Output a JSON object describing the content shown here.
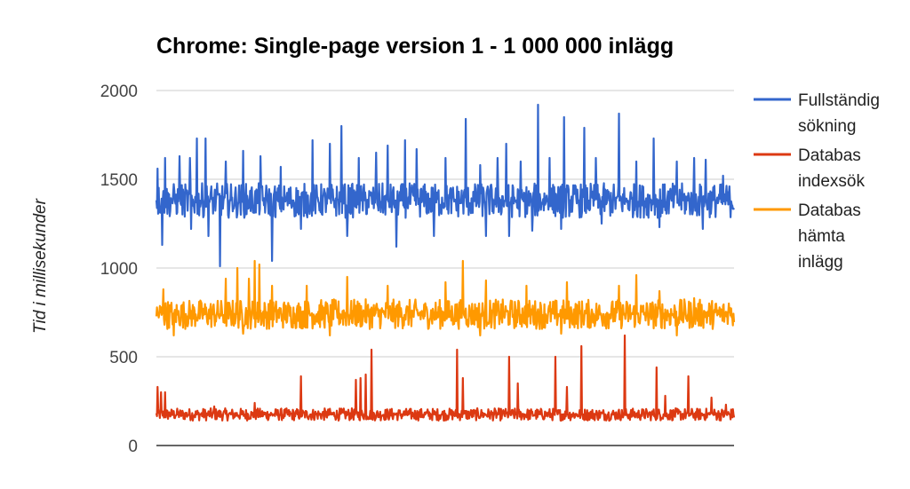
{
  "chart_data": {
    "type": "line",
    "title": "Chrome: Single-page version 1 - 1 000 000 inlägg",
    "xlabel": "",
    "ylabel": "Tid i millisekunder",
    "ylim": [
      0,
      2000
    ],
    "yticks": [
      "0",
      "500",
      "1000",
      "1500",
      "2000"
    ],
    "grid": true,
    "legend_position": "right",
    "n_points": 1000,
    "series": [
      {
        "name": [
          "Fullständig",
          "sökning"
        ],
        "color": "#3366cc",
        "base": 1380,
        "noise": 70,
        "spikes": [
          {
            "i": 2,
            "v": 1560
          },
          {
            "i": 15,
            "v": 1620
          },
          {
            "i": 40,
            "v": 1630
          },
          {
            "i": 58,
            "v": 1620
          },
          {
            "i": 70,
            "v": 1730
          },
          {
            "i": 85,
            "v": 1730
          },
          {
            "i": 110,
            "v": 1010
          },
          {
            "i": 120,
            "v": 1600
          },
          {
            "i": 150,
            "v": 1660
          },
          {
            "i": 180,
            "v": 1630
          },
          {
            "i": 200,
            "v": 1040
          },
          {
            "i": 215,
            "v": 1570
          },
          {
            "i": 250,
            "v": 1640
          },
          {
            "i": 270,
            "v": 1720
          },
          {
            "i": 300,
            "v": 1700
          },
          {
            "i": 320,
            "v": 1800
          },
          {
            "i": 350,
            "v": 1620
          },
          {
            "i": 380,
            "v": 1650
          },
          {
            "i": 400,
            "v": 1690
          },
          {
            "i": 430,
            "v": 1720
          },
          {
            "i": 450,
            "v": 1670
          },
          {
            "i": 480,
            "v": 1760
          },
          {
            "i": 500,
            "v": 1620
          },
          {
            "i": 535,
            "v": 1840
          },
          {
            "i": 560,
            "v": 1580
          },
          {
            "i": 590,
            "v": 1620
          },
          {
            "i": 605,
            "v": 1700
          },
          {
            "i": 610,
            "v": 1180
          },
          {
            "i": 630,
            "v": 1600
          },
          {
            "i": 660,
            "v": 1920
          },
          {
            "i": 680,
            "v": 1620
          },
          {
            "i": 705,
            "v": 1850
          },
          {
            "i": 740,
            "v": 1790
          },
          {
            "i": 760,
            "v": 1620
          },
          {
            "i": 800,
            "v": 1870
          },
          {
            "i": 830,
            "v": 1600
          },
          {
            "i": 860,
            "v": 1730
          },
          {
            "i": 900,
            "v": 1600
          },
          {
            "i": 930,
            "v": 1620
          },
          {
            "i": 950,
            "v": 1610
          },
          {
            "i": 980,
            "v": 1520
          },
          {
            "i": 10,
            "v": 1130
          },
          {
            "i": 60,
            "v": 1220
          },
          {
            "i": 90,
            "v": 1180
          },
          {
            "i": 250,
            "v": 1220
          },
          {
            "i": 330,
            "v": 1180
          },
          {
            "i": 415,
            "v": 1120
          },
          {
            "i": 480,
            "v": 1180
          },
          {
            "i": 570,
            "v": 1180
          },
          {
            "i": 650,
            "v": 1210
          },
          {
            "i": 700,
            "v": 1220
          },
          {
            "i": 770,
            "v": 1250
          },
          {
            "i": 870,
            "v": 1230
          },
          {
            "i": 945,
            "v": 1220
          }
        ]
      },
      {
        "name": [
          "Databas",
          "indexsök"
        ],
        "color": "#dc3912",
        "base": 175,
        "noise": 25,
        "spikes": [
          {
            "i": 2,
            "v": 330
          },
          {
            "i": 8,
            "v": 300
          },
          {
            "i": 15,
            "v": 300
          },
          {
            "i": 100,
            "v": 220
          },
          {
            "i": 170,
            "v": 240
          },
          {
            "i": 250,
            "v": 390
          },
          {
            "i": 345,
            "v": 370
          },
          {
            "i": 353,
            "v": 380
          },
          {
            "i": 362,
            "v": 400
          },
          {
            "i": 372,
            "v": 540
          },
          {
            "i": 520,
            "v": 540
          },
          {
            "i": 530,
            "v": 380
          },
          {
            "i": 610,
            "v": 500
          },
          {
            "i": 625,
            "v": 350
          },
          {
            "i": 690,
            "v": 500
          },
          {
            "i": 710,
            "v": 330
          },
          {
            "i": 735,
            "v": 560
          },
          {
            "i": 810,
            "v": 620
          },
          {
            "i": 865,
            "v": 440
          },
          {
            "i": 880,
            "v": 280
          },
          {
            "i": 920,
            "v": 390
          },
          {
            "i": 960,
            "v": 270
          },
          {
            "i": 985,
            "v": 230
          }
        ]
      },
      {
        "name": [
          "Databas",
          "hämta",
          "inlägg"
        ],
        "color": "#ff9900",
        "base": 740,
        "noise": 60,
        "spikes": [
          {
            "i": 12,
            "v": 880
          },
          {
            "i": 120,
            "v": 940
          },
          {
            "i": 140,
            "v": 1000
          },
          {
            "i": 160,
            "v": 940
          },
          {
            "i": 170,
            "v": 1040
          },
          {
            "i": 178,
            "v": 1020
          },
          {
            "i": 200,
            "v": 900
          },
          {
            "i": 260,
            "v": 900
          },
          {
            "i": 330,
            "v": 950
          },
          {
            "i": 400,
            "v": 900
          },
          {
            "i": 500,
            "v": 920
          },
          {
            "i": 530,
            "v": 1040
          },
          {
            "i": 570,
            "v": 930
          },
          {
            "i": 640,
            "v": 900
          },
          {
            "i": 710,
            "v": 920
          },
          {
            "i": 800,
            "v": 900
          },
          {
            "i": 830,
            "v": 960
          },
          {
            "i": 870,
            "v": 870
          },
          {
            "i": 930,
            "v": 830
          },
          {
            "i": 990,
            "v": 800
          },
          {
            "i": 30,
            "v": 620
          },
          {
            "i": 150,
            "v": 630
          },
          {
            "i": 300,
            "v": 620
          },
          {
            "i": 560,
            "v": 620
          },
          {
            "i": 700,
            "v": 630
          },
          {
            "i": 900,
            "v": 620
          }
        ]
      }
    ]
  }
}
